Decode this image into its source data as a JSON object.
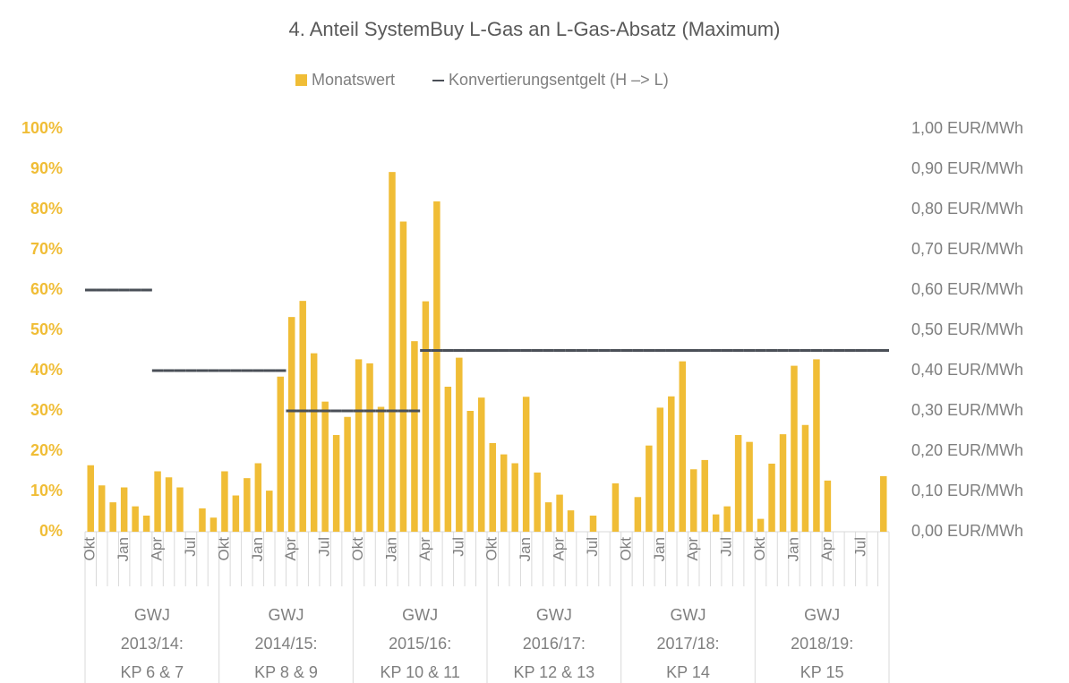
{
  "chart_data": {
    "type": "bar",
    "title": "4. Anteil SystemBuy L-Gas an L-Gas-Absatz (Maximum)",
    "categories": [
      "Okt",
      null,
      null,
      "Jan",
      null,
      null,
      "Apr",
      null,
      null,
      "Jul",
      null,
      null,
      "Okt",
      null,
      null,
      "Jan",
      null,
      null,
      "Apr",
      null,
      null,
      "Jul",
      null,
      null,
      "Okt",
      null,
      null,
      "Jan",
      null,
      null,
      "Apr",
      null,
      null,
      "Jul",
      null,
      null,
      "Okt",
      null,
      null,
      "Jan",
      null,
      null,
      "Apr",
      null,
      null,
      "Jul",
      null,
      null,
      "Okt",
      null,
      null,
      "Jan",
      null,
      null,
      "Apr",
      null,
      null,
      "Jul",
      null,
      null,
      "Okt",
      null,
      null,
      "Jan",
      null,
      null,
      "Apr",
      null,
      null,
      "Jul",
      null,
      null
    ],
    "groups": [
      [
        "GWJ",
        "2013/14:",
        "KP 6 & 7"
      ],
      [
        "GWJ",
        "2014/15:",
        "KP 8 & 9"
      ],
      [
        "GWJ",
        "2015/16:",
        "KP 10 & 11"
      ],
      [
        "GWJ",
        "2016/17:",
        "KP 12 & 13"
      ],
      [
        "GWJ",
        "2017/18:",
        "KP 14"
      ],
      [
        "GWJ",
        "2018/19:",
        "KP 15"
      ]
    ],
    "series": [
      {
        "name": "Monatswert",
        "color": "#f0bd36",
        "values": [
          16.5,
          11.5,
          7.3,
          11,
          6.3,
          4,
          15,
          13.5,
          11,
          0,
          5.8,
          3.5,
          15,
          9,
          13.3,
          17,
          10.2,
          38.5,
          53.3,
          57.3,
          44.3,
          32.3,
          24,
          28.5,
          42.8,
          41.8,
          31,
          89.3,
          77,
          47.3,
          57.2,
          82,
          36,
          43.2,
          30,
          33.3,
          22,
          19.2,
          17,
          33.5,
          14.7,
          7.3,
          9.2,
          5.3,
          0,
          4,
          0,
          12,
          0,
          8.6,
          21.4,
          30.8,
          33.6,
          42.3,
          15.5,
          17.8,
          4.3,
          6.3,
          24,
          22.3,
          3.2,
          16.9,
          24.2,
          41.2,
          26.5,
          42.8,
          12.7,
          0,
          0,
          0,
          0,
          13.8
        ]
      },
      {
        "name": "Konvertierungsentgelt (H –> L)",
        "color": "#4a4f57",
        "axis": "y2",
        "type": "line",
        "values": [
          0.6,
          0.6,
          0.6,
          0.6,
          0.6,
          0.6,
          0.4,
          0.4,
          0.4,
          0.4,
          0.4,
          0.4,
          0.4,
          0.4,
          0.4,
          0.4,
          0.4,
          0.4,
          0.3,
          0.3,
          0.3,
          0.3,
          0.3,
          0.3,
          0.3,
          0.3,
          0.3,
          0.3,
          0.3,
          0.3,
          0.45,
          0.45,
          0.45,
          0.45,
          0.45,
          0.45,
          0.45,
          0.45,
          0.45,
          0.45,
          0.45,
          0.45,
          0.45,
          0.45,
          0.45,
          0.45,
          0.45,
          0.45,
          0.45,
          0.45,
          0.45,
          0.45,
          0.45,
          0.45,
          0.45,
          0.45,
          0.45,
          0.45,
          0.45,
          0.45,
          0.45,
          0.45,
          0.45,
          0.45,
          0.45,
          0.45,
          0.45,
          0.45,
          0.45,
          0.45,
          0.45,
          0.45
        ]
      }
    ],
    "ylim": [
      0,
      100
    ],
    "yticks": [
      {
        "value": 0,
        "label": "0%"
      },
      {
        "value": 10,
        "label": "10%"
      },
      {
        "value": 20,
        "label": "20%"
      },
      {
        "value": 30,
        "label": "30%"
      },
      {
        "value": 40,
        "label": "40%"
      },
      {
        "value": 50,
        "label": "50%"
      },
      {
        "value": 60,
        "label": "60%"
      },
      {
        "value": 70,
        "label": "70%"
      },
      {
        "value": 80,
        "label": "80%"
      },
      {
        "value": 90,
        "label": "90%"
      },
      {
        "value": 100,
        "label": "100%"
      }
    ],
    "y2lim": [
      0,
      1
    ],
    "y2ticks": [
      {
        "value": 0,
        "label": "0,00 EUR/MWh"
      },
      {
        "value": 0.1,
        "label": "0,10 EUR/MWh"
      },
      {
        "value": 0.2,
        "label": "0,20 EUR/MWh"
      },
      {
        "value": 0.3,
        "label": "0,30 EUR/MWh"
      },
      {
        "value": 0.4,
        "label": "0,40 EUR/MWh"
      },
      {
        "value": 0.5,
        "label": "0,50 EUR/MWh"
      },
      {
        "value": 0.6,
        "label": "0,60 EUR/MWh"
      },
      {
        "value": 0.7,
        "label": "0,70 EUR/MWh"
      },
      {
        "value": 0.8,
        "label": "0,80 EUR/MWh"
      },
      {
        "value": 0.9,
        "label": "0,90 EUR/MWh"
      },
      {
        "value": 1,
        "label": "1,00 EUR/MWh"
      }
    ],
    "legend": "top"
  }
}
